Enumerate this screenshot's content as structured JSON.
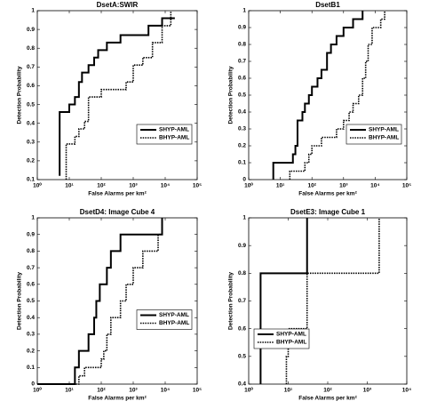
{
  "chart_data": [
    {
      "type": "line",
      "step": true,
      "title": "DsetA:SWIR",
      "x_label": "False Alarms per km²",
      "y_label": "Detection Probability",
      "x_scale": "log",
      "xlim": [
        1,
        100000
      ],
      "xticks": [
        {
          "value": 1,
          "label": "10⁰"
        },
        {
          "value": 10,
          "label": "10¹"
        },
        {
          "value": 100,
          "label": "10²"
        },
        {
          "value": 1000,
          "label": "10³"
        },
        {
          "value": 10000,
          "label": "10⁴"
        },
        {
          "value": 100000,
          "label": "10⁵"
        }
      ],
      "ylim": [
        0.1,
        1
      ],
      "yticks": [
        0.1,
        0.2,
        0.3,
        0.4,
        0.5,
        0.6,
        0.7,
        0.8,
        0.9,
        1
      ],
      "legend": "lower right",
      "series": [
        {
          "name": "SHYP-AML",
          "color": "#000000",
          "line_style": "solid",
          "x": [
            5,
            5,
            10,
            15,
            20,
            25,
            40,
            60,
            80,
            150,
            400,
            1000,
            3000,
            8000,
            20000
          ],
          "values": [
            0.12,
            0.46,
            0.5,
            0.54,
            0.62,
            0.67,
            0.71,
            0.75,
            0.79,
            0.83,
            0.87,
            0.87,
            0.92,
            0.96,
            0.96
          ]
        },
        {
          "name": "BHYP-AML",
          "color": "#000000",
          "line_style": "dotted",
          "x": [
            8,
            8,
            15,
            20,
            30,
            40,
            100,
            300,
            600,
            1000,
            2000,
            4000,
            8000,
            15000
          ],
          "values": [
            0.1,
            0.29,
            0.33,
            0.37,
            0.41,
            0.54,
            0.58,
            0.58,
            0.62,
            0.71,
            0.75,
            0.83,
            0.92,
            1
          ]
        }
      ]
    },
    {
      "type": "line",
      "step": true,
      "title": "DsetB1",
      "x_label": "False Alarms per km²",
      "y_label": "Detection Probability",
      "x_scale": "log",
      "xlim": [
        1,
        100000
      ],
      "xticks": [
        {
          "value": 1,
          "label": "10⁰"
        },
        {
          "value": 10,
          "label": "10¹"
        },
        {
          "value": 100,
          "label": "10²"
        },
        {
          "value": 1000,
          "label": "10³"
        },
        {
          "value": 10000,
          "label": "10⁴"
        },
        {
          "value": 100000,
          "label": "10⁵"
        }
      ],
      "ylim": [
        0,
        1
      ],
      "yticks": [
        0,
        0.1,
        0.2,
        0.3,
        0.4,
        0.5,
        0.6,
        0.7,
        0.8,
        0.9,
        1
      ],
      "legend": "lower right",
      "series": [
        {
          "name": "SHYP-AML",
          "color": "#000000",
          "line_style": "solid",
          "x": [
            6,
            6,
            25,
            30,
            35,
            50,
            60,
            80,
            100,
            150,
            200,
            300,
            400,
            600,
            1000,
            2000,
            4000
          ],
          "values": [
            0,
            0.1,
            0.15,
            0.2,
            0.35,
            0.4,
            0.45,
            0.5,
            0.55,
            0.6,
            0.65,
            0.75,
            0.8,
            0.85,
            0.9,
            0.95,
            1
          ]
        },
        {
          "name": "BHYP-AML",
          "color": "#000000",
          "line_style": "dotted",
          "x": [
            20,
            20,
            60,
            80,
            100,
            200,
            600,
            1000,
            1500,
            2000,
            3000,
            4000,
            5000,
            6000,
            8000,
            15000,
            20000
          ],
          "values": [
            0,
            0.05,
            0.1,
            0.15,
            0.2,
            0.25,
            0.3,
            0.35,
            0.4,
            0.45,
            0.5,
            0.6,
            0.7,
            0.8,
            0.9,
            0.95,
            1
          ]
        }
      ]
    },
    {
      "type": "line",
      "step": true,
      "title": "DsetD4: Image Cube 4",
      "x_label": "False Alarms per km²",
      "y_label": "Detection Probability",
      "x_scale": "log",
      "xlim": [
        1,
        100000
      ],
      "xticks": [
        {
          "value": 1,
          "label": "10⁰"
        },
        {
          "value": 10,
          "label": "10¹"
        },
        {
          "value": 100,
          "label": "10²"
        },
        {
          "value": 1000,
          "label": "10³"
        },
        {
          "value": 10000,
          "label": "10⁴"
        },
        {
          "value": 100000,
          "label": "10⁵"
        }
      ],
      "ylim": [
        0,
        1
      ],
      "yticks": [
        0,
        0.1,
        0.2,
        0.3,
        0.4,
        0.5,
        0.6,
        0.7,
        0.8,
        0.9,
        1
      ],
      "legend": "center right",
      "series": [
        {
          "name": "SHYP-AML",
          "color": "#000000",
          "line_style": "solid",
          "x": [
            1,
            15,
            20,
            40,
            60,
            70,
            90,
            150,
            200,
            400,
            8000
          ],
          "values": [
            0,
            0.1,
            0.2,
            0.3,
            0.4,
            0.5,
            0.6,
            0.7,
            0.8,
            0.9,
            1
          ]
        },
        {
          "name": "BHYP-AML",
          "color": "#000000",
          "line_style": "dotted",
          "x": [
            1,
            20,
            30,
            100,
            120,
            150,
            200,
            400,
            600,
            1000,
            2000,
            6000,
            8000
          ],
          "values": [
            0,
            0.05,
            0.1,
            0.15,
            0.2,
            0.3,
            0.4,
            0.5,
            0.6,
            0.7,
            0.8,
            0.9,
            1
          ]
        }
      ]
    },
    {
      "type": "line",
      "step": true,
      "title": "DsetE3: Image Cube 1",
      "x_label": "False Alarms per km²",
      "y_label": "Detection Probability",
      "x_scale": "log",
      "xlim": [
        1,
        10000
      ],
      "xticks": [
        {
          "value": 1,
          "label": "10⁰"
        },
        {
          "value": 10,
          "label": "10¹"
        },
        {
          "value": 100,
          "label": "10²"
        },
        {
          "value": 1000,
          "label": "10³"
        },
        {
          "value": 10000,
          "label": "10⁴"
        }
      ],
      "ylim": [
        0.4,
        1
      ],
      "yticks": [
        0.4,
        0.5,
        0.6,
        0.7,
        0.8,
        0.9,
        1
      ],
      "legend": "lower left",
      "series": [
        {
          "name": "SHYP-AML",
          "color": "#000000",
          "line_style": "solid",
          "x": [
            2,
            2,
            30
          ],
          "values": [
            0.4,
            0.8,
            1
          ]
        },
        {
          "name": "BHYP-AML",
          "color": "#000000",
          "line_style": "dotted",
          "x": [
            9,
            9,
            10,
            30,
            2000
          ],
          "values": [
            0.4,
            0.5,
            0.6,
            0.8,
            1
          ]
        }
      ]
    }
  ]
}
